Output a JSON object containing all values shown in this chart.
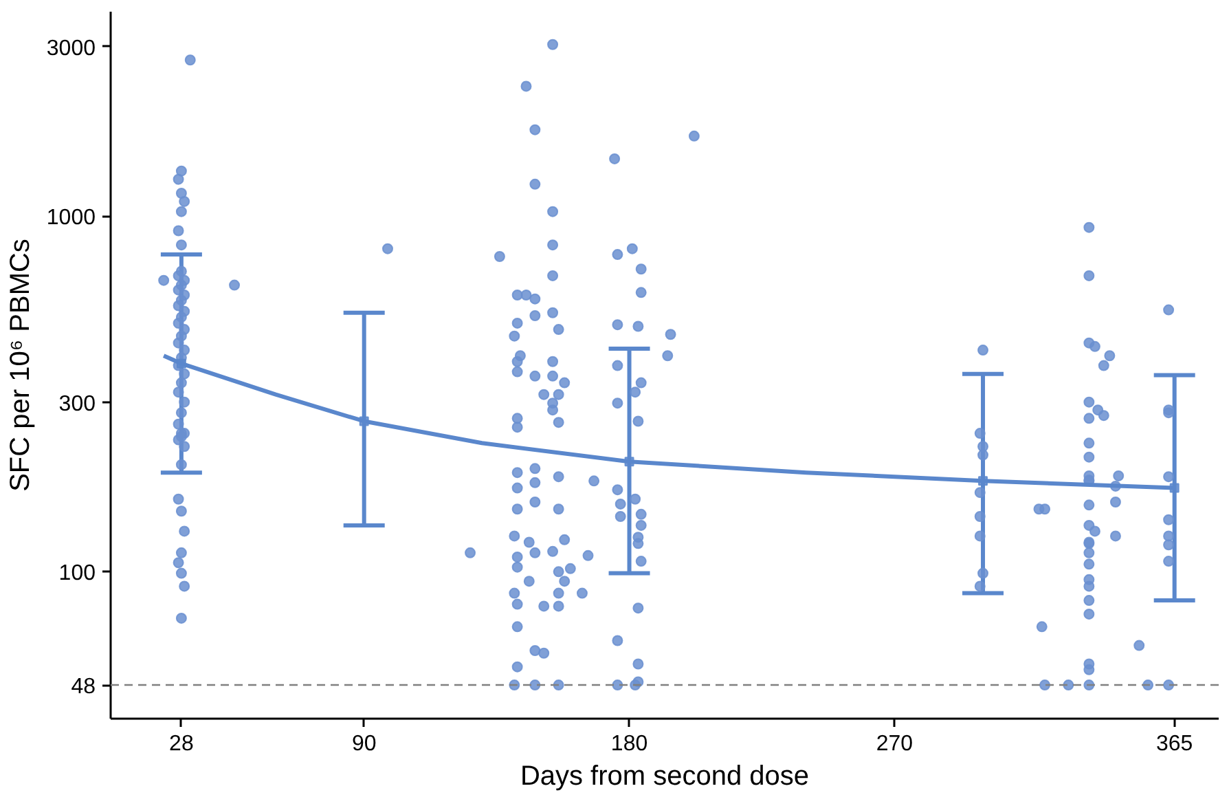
{
  "chart_data": {
    "type": "scatter",
    "xlabel": "Days from second dose",
    "ylabel": "SFC per 10⁶ PBMCs",
    "log": "y",
    "grid": false,
    "xlim": [
      4,
      380
    ],
    "xticks": [
      28,
      90,
      180,
      270,
      365
    ],
    "ylim": [
      38.6,
      3760
    ],
    "yticks": [
      48,
      100,
      300,
      1000,
      3000
    ],
    "ref_lines": [
      {
        "axis": "y",
        "value": 48,
        "color": "#808080",
        "line_style": "dashed"
      }
    ],
    "series": [
      {
        "color": "#6a8fd0",
        "marker": "circle",
        "x": [
          31,
          28,
          27,
          28,
          29,
          28,
          27,
          28,
          22,
          46,
          28,
          27,
          29,
          28,
          27,
          29,
          28,
          27,
          29,
          28,
          27,
          29,
          28,
          27,
          29,
          28,
          27,
          29,
          28,
          27,
          29,
          28,
          27,
          29,
          28,
          27,
          28,
          29,
          28,
          27,
          28,
          29,
          28,
          27,
          28,
          29,
          28,
          98,
          154,
          145,
          148,
          148,
          154,
          154,
          136,
          154,
          142,
          145,
          148,
          142,
          148,
          154,
          156,
          141,
          143,
          142,
          142,
          148,
          154,
          154,
          158,
          151,
          154,
          156,
          154,
          156,
          142,
          142,
          142,
          148,
          156,
          148,
          142,
          142,
          148,
          156,
          141,
          146,
          158,
          142,
          148,
          154,
          142,
          156,
          146,
          158,
          141,
          156,
          142,
          151,
          156,
          142,
          148,
          151,
          142,
          141,
          148,
          156,
          126,
          160,
          166,
          164,
          168,
          175,
          202,
          176,
          181,
          184,
          184,
          176,
          183,
          194,
          193,
          176,
          184,
          182,
          176,
          183,
          176,
          177,
          177,
          182,
          184,
          184,
          183,
          183,
          184,
          183,
          176,
          183,
          183,
          176,
          182,
          300,
          299,
          300,
          300,
          299,
          299,
          299,
          300,
          299,
          319,
          321,
          320,
          321,
          329,
          336,
          336,
          336,
          338,
          343,
          341,
          336,
          339,
          336,
          341,
          336,
          336,
          336,
          336,
          345,
          346,
          336,
          345,
          336,
          336,
          338,
          345,
          336,
          336,
          336,
          336,
          336,
          336,
          336,
          336,
          336,
          336,
          336,
          353,
          356,
          363,
          363,
          363,
          363,
          363,
          363,
          363,
          363,
          363
        ],
        "values": [
          2750,
          1340,
          1270,
          1160,
          1100,
          1030,
          910,
          830,
          660,
          640,
          700,
          680,
          660,
          640,
          620,
          600,
          580,
          560,
          540,
          520,
          500,
          480,
          460,
          440,
          420,
          400,
          380,
          360,
          340,
          320,
          300,
          280,
          260,
          245,
          240,
          235,
          245,
          225,
          200,
          160,
          148,
          130,
          113,
          106,
          99,
          91,
          74,
          810,
          3040,
          2320,
          1750,
          1230,
          1030,
          830,
          770,
          680,
          600,
          600,
          585,
          500,
          525,
          535,
          480,
          460,
          405,
          390,
          365,
          355,
          390,
          355,
          340,
          315,
          298,
          315,
          285,
          263,
          255,
          270,
          190,
          195,
          185,
          178,
          172,
          150,
          157,
          150,
          126,
          121,
          123,
          110,
          113,
          114,
          103,
          100,
          94,
          94,
          87,
          87,
          81,
          80,
          80,
          70,
          60,
          59,
          54,
          48,
          48,
          48,
          113,
          102,
          111,
          87,
          180,
          1450,
          1680,
          780,
          810,
          710,
          610,
          495,
          490,
          465,
          405,
          380,
          340,
          320,
          298,
          265,
          170,
          155,
          143,
          160,
          145,
          135,
          125,
          120,
          107,
          79,
          64,
          55,
          49,
          48,
          48,
          420,
          245,
          225,
          213,
          167,
          143,
          126,
          99,
          91,
          150,
          150,
          70,
          48,
          48,
          930,
          680,
          440,
          430,
          405,
          380,
          300,
          285,
          270,
          275,
          230,
          210,
          186,
          180,
          174,
          186,
          181,
          157,
          154,
          135,
          130,
          126,
          121,
          120,
          113,
          105,
          95,
          91,
          83,
          76,
          55,
          53,
          48,
          62,
          48,
          545,
          285,
          280,
          185,
          140,
          126,
          119,
          107,
          48
        ]
      },
      {
        "type": "line",
        "color": "#5a87cc",
        "x": [
          22,
          28,
          60,
          90,
          130,
          180,
          240,
          300,
          365
        ],
        "values": [
          405,
          385,
          315,
          265,
          230,
          204,
          190,
          180,
          172
        ]
      },
      {
        "type": "scatter",
        "color": "#5a87cc",
        "marker": "square",
        "x": [
          28,
          90,
          180,
          300,
          365
        ],
        "values": [
          385,
          265,
          204,
          180,
          172
        ],
        "errors": [
          [
            190,
            780
          ],
          [
            135,
            535
          ],
          [
            99,
            424
          ],
          [
            87,
            360
          ],
          [
            83,
            357
          ]
        ]
      }
    ]
  }
}
